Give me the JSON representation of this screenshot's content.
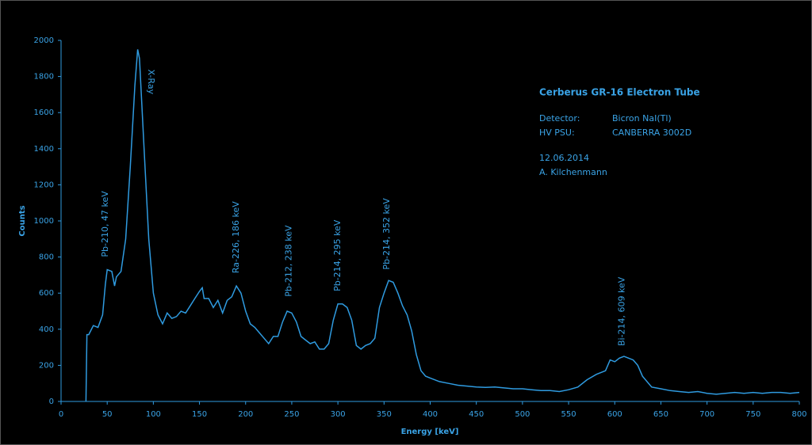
{
  "chart_data": {
    "type": "line",
    "title": "Cerberus GR-16 Electron Tube",
    "info": [
      [
        "Detector:",
        "Bicron NaI(Tl)"
      ],
      [
        "HV PSU:",
        "CANBERRA 3002D"
      ]
    ],
    "notes": [
      "12.06.2014",
      "A. Kilchenmann"
    ],
    "x_label": "Energy [keV]",
    "y_label": "Counts",
    "x": [
      27,
      28,
      30,
      35,
      40,
      45,
      48,
      50,
      55,
      58,
      60,
      65,
      70,
      75,
      80,
      83,
      85,
      90,
      95,
      100,
      105,
      110,
      115,
      120,
      125,
      130,
      135,
      140,
      145,
      150,
      153,
      155,
      160,
      165,
      170,
      175,
      180,
      185,
      190,
      195,
      200,
      205,
      210,
      215,
      220,
      225,
      230,
      235,
      240,
      245,
      250,
      255,
      260,
      265,
      270,
      275,
      280,
      285,
      290,
      295,
      300,
      305,
      310,
      315,
      320,
      325,
      330,
      335,
      340,
      345,
      350,
      355,
      360,
      365,
      370,
      375,
      380,
      385,
      390,
      395,
      400,
      410,
      420,
      430,
      440,
      450,
      460,
      470,
      480,
      490,
      500,
      510,
      520,
      530,
      540,
      550,
      560,
      570,
      580,
      590,
      595,
      600,
      605,
      610,
      615,
      620,
      625,
      630,
      640,
      650,
      660,
      670,
      680,
      690,
      700,
      710,
      720,
      730,
      740,
      750,
      760,
      770,
      780,
      790,
      800
    ],
    "series": [
      {
        "name": "Counts",
        "color": "#2f9be0",
        "values": [
          0,
          370,
          370,
          420,
          410,
          480,
          650,
          730,
          720,
          640,
          690,
          720,
          900,
          1300,
          1750,
          1950,
          1900,
          1400,
          900,
          600,
          480,
          430,
          490,
          460,
          470,
          500,
          490,
          530,
          570,
          610,
          630,
          570,
          570,
          520,
          560,
          490,
          560,
          580,
          640,
          600,
          500,
          430,
          410,
          380,
          350,
          320,
          360,
          360,
          440,
          500,
          490,
          440,
          360,
          340,
          320,
          330,
          290,
          290,
          320,
          450,
          540,
          540,
          520,
          450,
          310,
          290,
          310,
          320,
          350,
          520,
          600,
          670,
          660,
          600,
          530,
          480,
          390,
          260,
          170,
          140,
          130,
          110,
          100,
          90,
          85,
          80,
          78,
          80,
          75,
          70,
          70,
          65,
          60,
          60,
          55,
          65,
          80,
          120,
          150,
          170,
          230,
          220,
          240,
          250,
          240,
          230,
          200,
          140,
          80,
          70,
          60,
          55,
          50,
          55,
          45,
          40,
          45,
          50,
          45,
          50,
          45,
          50,
          50,
          45,
          50
        ]
      }
    ],
    "annotations": [
      {
        "text": "Pb-210, 47 keV",
        "x": 48,
        "y": 800,
        "rotation": -90
      },
      {
        "text": "X-Ray",
        "x": 97,
        "y": 1840,
        "rotation": 90
      },
      {
        "text": "Ra-226, 186 keV",
        "x": 190,
        "y": 710,
        "rotation": -90
      },
      {
        "text": "Pb-212, 238 keV",
        "x": 247,
        "y": 580,
        "rotation": -90
      },
      {
        "text": "Pb-214, 295 keV",
        "x": 300,
        "y": 610,
        "rotation": -90
      },
      {
        "text": "Pb-214, 352 keV",
        "x": 353,
        "y": 730,
        "rotation": -90
      },
      {
        "text": "Bi-214, 609 keV",
        "x": 608,
        "y": 307,
        "rotation": -90
      }
    ],
    "xlim": [
      0,
      800
    ],
    "ylim": [
      0,
      2000
    ],
    "xticks": [
      0,
      50,
      100,
      150,
      200,
      250,
      300,
      350,
      400,
      450,
      500,
      550,
      600,
      650,
      700,
      750,
      800
    ],
    "yticks": [
      0,
      200,
      400,
      600,
      800,
      1000,
      1200,
      1400,
      1600,
      1800,
      2000
    ],
    "grid": false
  }
}
